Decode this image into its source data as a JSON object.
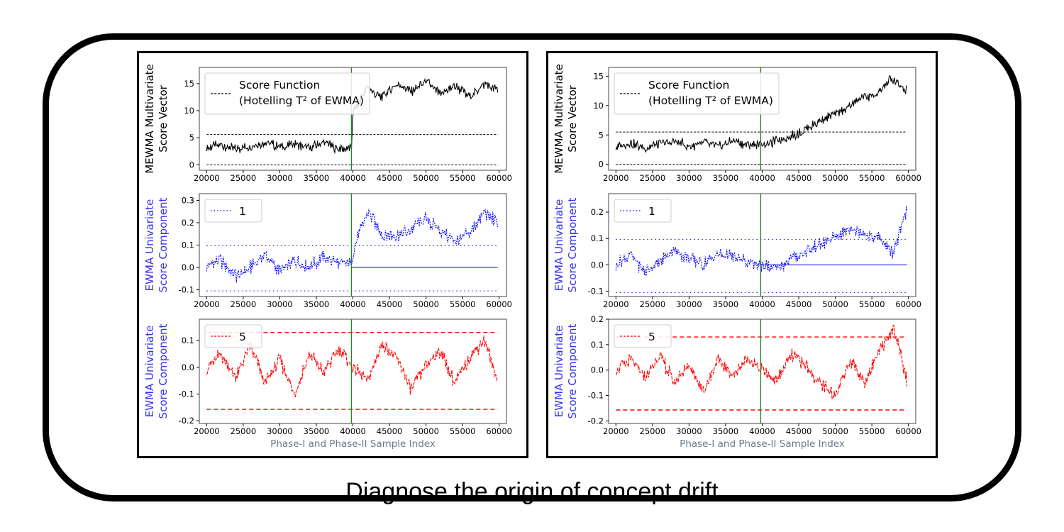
{
  "caption": "Diagnose the origin of concept drift",
  "chart_data": [
    {
      "type": "line",
      "panel": "left",
      "row": "top",
      "ylabel_lines": [
        "MEWMA Multivariate",
        "Score Vector"
      ],
      "ylabel_color": "#000000",
      "series_color": "#000000",
      "legend_lines": [
        "Score Function",
        "(Hotelling T² of EWMA)"
      ],
      "legend_style": "dashed",
      "xlim": [
        19000,
        61000
      ],
      "ylim": [
        -1,
        18
      ],
      "yticks": [
        0,
        5,
        10,
        15
      ],
      "xticks": [
        20000,
        25000,
        30000,
        35000,
        40000,
        45000,
        50000,
        55000,
        60000
      ],
      "change_point": 39800,
      "hlines": [
        0,
        5.6
      ],
      "x": [
        20000,
        22000,
        24000,
        26000,
        28000,
        30000,
        32000,
        34000,
        36000,
        38000,
        39800,
        40000,
        41000,
        42000,
        43000,
        44000,
        46000,
        48000,
        50000,
        52000,
        54000,
        56000,
        58000,
        59800
      ],
      "y": [
        3.1,
        3.7,
        2.8,
        3.5,
        4.1,
        3.3,
        3.9,
        3.0,
        4.2,
        2.9,
        3.2,
        9.5,
        12.0,
        14.5,
        13.0,
        12.5,
        15.0,
        13.5,
        15.5,
        13.0,
        14.5,
        12.5,
        15.0,
        13.8
      ]
    },
    {
      "type": "line",
      "panel": "left",
      "row": "middle",
      "ylabel_lines": [
        "EWMA Univariate",
        "Score Component"
      ],
      "ylabel_color": "#3333ee",
      "series_color": "#0000ff",
      "legend_lines": [
        "1"
      ],
      "legend_style": "dotted",
      "xlim": [
        19000,
        61000
      ],
      "ylim": [
        -0.13,
        0.33
      ],
      "yticks": [
        -0.1,
        0.0,
        0.1,
        0.2,
        0.3
      ],
      "xticks": [
        20000,
        25000,
        30000,
        35000,
        40000,
        45000,
        50000,
        55000,
        60000
      ],
      "change_point": 39800,
      "hlines": [
        -0.105,
        0.097
      ],
      "hline_after_change": 0.0,
      "x": [
        20000,
        22000,
        24000,
        26000,
        28000,
        30000,
        32000,
        34000,
        36000,
        38000,
        39800,
        40500,
        42000,
        44000,
        46000,
        48000,
        50000,
        52000,
        54000,
        56000,
        58000,
        59800
      ],
      "y": [
        0.01,
        0.03,
        -0.04,
        0.0,
        0.06,
        -0.02,
        0.03,
        0.0,
        0.05,
        0.02,
        0.02,
        0.12,
        0.25,
        0.15,
        0.14,
        0.17,
        0.22,
        0.16,
        0.12,
        0.15,
        0.25,
        0.2
      ]
    },
    {
      "type": "line",
      "panel": "left",
      "row": "bottom",
      "ylabel_lines": [
        "EWMA Univariate",
        "Score Component"
      ],
      "ylabel_color": "#3333ee",
      "series_color": "#ff0000",
      "legend_lines": [
        "5"
      ],
      "legend_style": "dashed",
      "xlim": [
        19000,
        61000
      ],
      "ylim": [
        -0.21,
        0.18
      ],
      "yticks": [
        -0.2,
        -0.1,
        0.0,
        0.1
      ],
      "xticks": [
        20000,
        25000,
        30000,
        35000,
        40000,
        45000,
        50000,
        55000,
        60000
      ],
      "change_point": 39800,
      "hlines": [
        -0.157,
        0.13
      ],
      "xlabel": "Phase-I and Phase-II Sample Index",
      "x": [
        20000,
        22000,
        24000,
        26000,
        28000,
        30000,
        32000,
        34000,
        36000,
        38000,
        40000,
        42000,
        44000,
        46000,
        48000,
        50000,
        52000,
        54000,
        56000,
        58000,
        59800
      ],
      "y": [
        0.0,
        0.05,
        -0.04,
        0.08,
        -0.06,
        0.03,
        -0.1,
        0.05,
        -0.02,
        0.07,
        0.0,
        -0.05,
        0.09,
        0.03,
        -0.08,
        0.01,
        0.06,
        -0.06,
        0.04,
        0.1,
        -0.05
      ]
    },
    {
      "type": "line",
      "panel": "right",
      "row": "top",
      "ylabel_lines": [
        "MEWMA Multivariate",
        "Score Vector"
      ],
      "ylabel_color": "#000000",
      "series_color": "#000000",
      "legend_lines": [
        "Score Function",
        "(Hotelling T² of EWMA)"
      ],
      "legend_style": "dashed",
      "xlim": [
        19000,
        61000
      ],
      "ylim": [
        -1,
        16.5
      ],
      "yticks": [
        0,
        5,
        10,
        15
      ],
      "xticks": [
        20000,
        25000,
        30000,
        35000,
        40000,
        45000,
        50000,
        55000,
        60000
      ],
      "change_point": 39800,
      "hlines": [
        0,
        5.5
      ],
      "x": [
        20000,
        22000,
        24000,
        26000,
        28000,
        30000,
        32000,
        34000,
        36000,
        38000,
        40000,
        42000,
        44000,
        46000,
        48000,
        50000,
        52000,
        54000,
        56000,
        57500,
        59800
      ],
      "y": [
        3.0,
        3.6,
        2.8,
        3.4,
        3.9,
        3.1,
        3.7,
        3.0,
        4.0,
        3.3,
        3.5,
        4.0,
        4.8,
        6.0,
        7.5,
        8.5,
        10.0,
        11.5,
        12.0,
        14.5,
        12.5
      ]
    },
    {
      "type": "line",
      "panel": "right",
      "row": "middle",
      "ylabel_lines": [
        "EWMA Univariate",
        "Score Component"
      ],
      "ylabel_color": "#3333ee",
      "series_color": "#0000ff",
      "legend_lines": [
        "1"
      ],
      "legend_style": "dotted",
      "xlim": [
        19000,
        61000
      ],
      "ylim": [
        -0.12,
        0.27
      ],
      "yticks": [
        -0.1,
        0.0,
        0.1,
        0.2
      ],
      "xticks": [
        20000,
        25000,
        30000,
        35000,
        40000,
        45000,
        50000,
        55000,
        60000
      ],
      "change_point": 39800,
      "hlines": [
        -0.105,
        0.097
      ],
      "hline_after_change": 0.0,
      "x": [
        20000,
        22000,
        24000,
        26000,
        28000,
        30000,
        32000,
        34000,
        36000,
        38000,
        40000,
        42000,
        44000,
        46000,
        48000,
        50000,
        52000,
        54000,
        56000,
        58000,
        59800
      ],
      "y": [
        0.0,
        0.04,
        -0.03,
        0.01,
        0.06,
        0.02,
        0.0,
        0.04,
        0.03,
        0.01,
        0.0,
        -0.02,
        0.03,
        0.05,
        0.08,
        0.1,
        0.14,
        0.12,
        0.1,
        0.05,
        0.21
      ]
    },
    {
      "type": "line",
      "panel": "right",
      "row": "bottom",
      "ylabel_lines": [
        "EWMA Univariate",
        "Score Component"
      ],
      "ylabel_color": "#3333ee",
      "series_color": "#ff0000",
      "legend_lines": [
        "5"
      ],
      "legend_style": "dashed",
      "xlim": [
        19000,
        61000
      ],
      "ylim": [
        -0.21,
        0.2
      ],
      "yticks": [
        -0.2,
        -0.1,
        0.0,
        0.1,
        0.2
      ],
      "xticks": [
        20000,
        25000,
        30000,
        35000,
        40000,
        45000,
        50000,
        55000,
        60000
      ],
      "change_point": 39800,
      "hlines": [
        -0.157,
        0.13
      ],
      "xlabel": "Phase-I and Phase-II Sample Index",
      "x": [
        20000,
        22000,
        24000,
        26000,
        28000,
        30000,
        32000,
        34000,
        36000,
        38000,
        40000,
        42000,
        44000,
        46000,
        48000,
        50000,
        52000,
        54000,
        56000,
        58000,
        59800
      ],
      "y": [
        0.0,
        0.04,
        -0.03,
        0.06,
        -0.05,
        0.02,
        -0.08,
        0.04,
        -0.02,
        0.05,
        0.0,
        -0.04,
        0.06,
        0.02,
        -0.06,
        -0.1,
        0.04,
        -0.05,
        0.08,
        0.16,
        -0.04
      ]
    }
  ]
}
